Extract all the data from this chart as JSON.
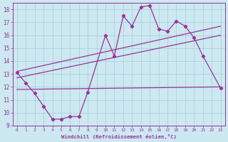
{
  "xlabel": "Windchill (Refroidissement éolien,°C)",
  "ylabel": "",
  "xlim": [
    -0.5,
    23.5
  ],
  "ylim": [
    9,
    18.5
  ],
  "yticks": [
    9,
    10,
    11,
    12,
    13,
    14,
    15,
    16,
    17,
    18
  ],
  "xticks": [
    0,
    1,
    2,
    3,
    4,
    5,
    6,
    7,
    8,
    9,
    10,
    11,
    12,
    13,
    14,
    15,
    16,
    17,
    18,
    19,
    20,
    21,
    22,
    23
  ],
  "bg_color": "#cce8f0",
  "grid_color": "#aaccd8",
  "line_color": "#993399",
  "main_series_x": [
    0,
    1,
    2,
    3,
    4,
    5,
    6,
    7,
    8,
    10,
    11,
    12,
    13,
    14,
    15,
    16,
    17,
    18,
    19,
    20,
    21,
    23
  ],
  "main_series_y": [
    13.1,
    12.3,
    11.5,
    10.5,
    9.5,
    9.5,
    9.7,
    9.7,
    11.6,
    16.0,
    14.4,
    17.5,
    16.7,
    18.2,
    18.3,
    16.5,
    16.3,
    17.1,
    16.7,
    15.8,
    14.4,
    11.9
  ],
  "trend1_x": [
    0,
    23
  ],
  "trend1_y": [
    11.8,
    12.0
  ],
  "trend2_x": [
    0,
    23
  ],
  "trend2_y": [
    12.7,
    16.0
  ],
  "trend3_x": [
    0,
    23
  ],
  "trend3_y": [
    13.2,
    16.7
  ]
}
